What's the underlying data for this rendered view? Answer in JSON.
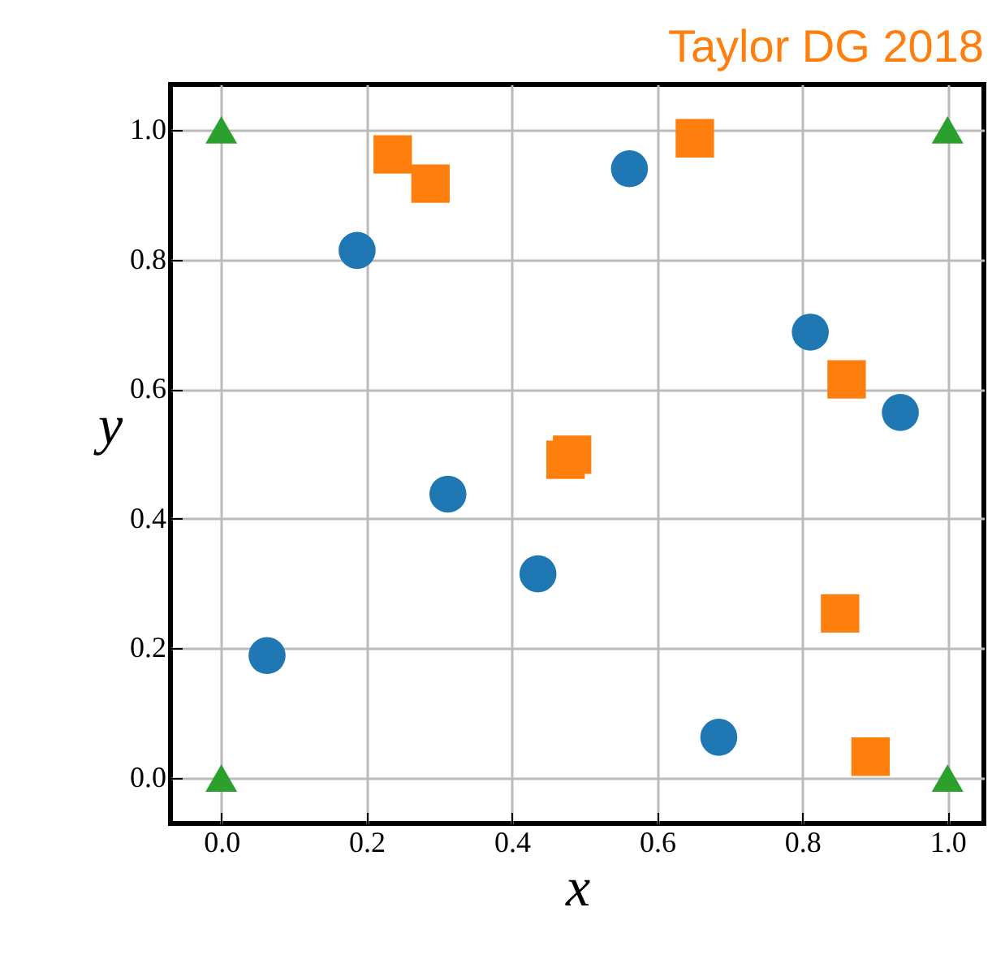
{
  "chart_data": {
    "type": "scatter",
    "title": "Taylor DG 2018",
    "xlabel": "x",
    "ylabel": "y",
    "xlim": [
      -0.07,
      1.05
    ],
    "ylim": [
      -0.07,
      1.07
    ],
    "xticks": [
      {
        "value": 0,
        "label": "0.0"
      },
      0.2,
      0.4,
      0.6,
      0.8,
      {
        "value": 1,
        "label": "1.0"
      }
    ],
    "yticks": [
      {
        "value": 0,
        "label": "0.0"
      },
      0.2,
      0.4,
      0.6,
      0.8,
      {
        "value": 1,
        "label": "1.0"
      }
    ],
    "grid": true,
    "series": [
      {
        "color": "#1f77b4",
        "marker": "circle",
        "x": [
          0.063,
          0.187,
          0.312,
          0.436,
          0.562,
          0.685,
          0.811,
          0.935
        ],
        "values": [
          0.189,
          0.814,
          0.438,
          0.315,
          0.94,
          0.063,
          0.688,
          0.564
        ]
      },
      {
        "color": "#ff7f0e",
        "marker": "square",
        "x": [
          0.236,
          0.288,
          0.652,
          0.474,
          0.483,
          0.861,
          0.852,
          0.894
        ],
        "values": [
          0.962,
          0.917,
          0.987,
          0.491,
          0.499,
          0.615,
          0.254,
          0.033
        ]
      },
      {
        "color": "#2ca02c",
        "marker": "triangle",
        "x": [
          0,
          0,
          1,
          1
        ],
        "values": [
          0,
          1,
          0,
          1
        ]
      }
    ]
  }
}
